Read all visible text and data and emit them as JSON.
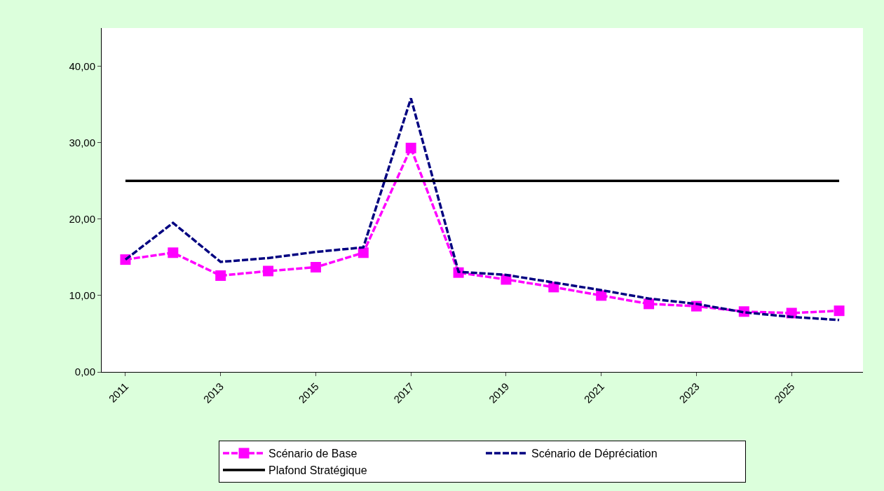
{
  "chart_data": {
    "type": "line",
    "categories": [
      "2011",
      null,
      "2013",
      null,
      "2015",
      null,
      "2017",
      null,
      "2019",
      null,
      "2021",
      null,
      "2023",
      null,
      "2025",
      null
    ],
    "series": [
      {
        "name": "Scénario de Base",
        "color": "#ff00ff",
        "marker": "square",
        "line_style": "dashed",
        "values": [
          14.7,
          15.6,
          12.6,
          13.2,
          13.7,
          15.6,
          29.3,
          13.0,
          12.1,
          11.1,
          10.0,
          8.9,
          8.6,
          7.9,
          7.7,
          8.0
        ]
      },
      {
        "name": "Scénario de Dépréciation",
        "color": "#000080",
        "marker": "none",
        "line_style": "dashed",
        "values": [
          14.7,
          19.5,
          14.4,
          14.9,
          15.7,
          16.3,
          35.8,
          13.1,
          12.7,
          11.7,
          10.7,
          9.6,
          8.9,
          7.8,
          7.2,
          6.8
        ]
      },
      {
        "name": "Plafond Stratégique",
        "color": "#000000",
        "marker": "none",
        "line_style": "solid",
        "values": [
          25,
          25,
          25,
          25,
          25,
          25,
          25,
          25,
          25,
          25,
          25,
          25,
          25,
          25,
          25,
          25
        ]
      }
    ],
    "ylim": [
      0,
      45
    ],
    "yticks": [
      {
        "value": 0,
        "label": "0,00"
      },
      {
        "value": 10,
        "label": "10,00"
      },
      {
        "value": 20,
        "label": "20,00"
      },
      {
        "value": 30,
        "label": "30,00"
      },
      {
        "value": 40,
        "label": "40,00"
      }
    ],
    "legend": "bottom"
  }
}
